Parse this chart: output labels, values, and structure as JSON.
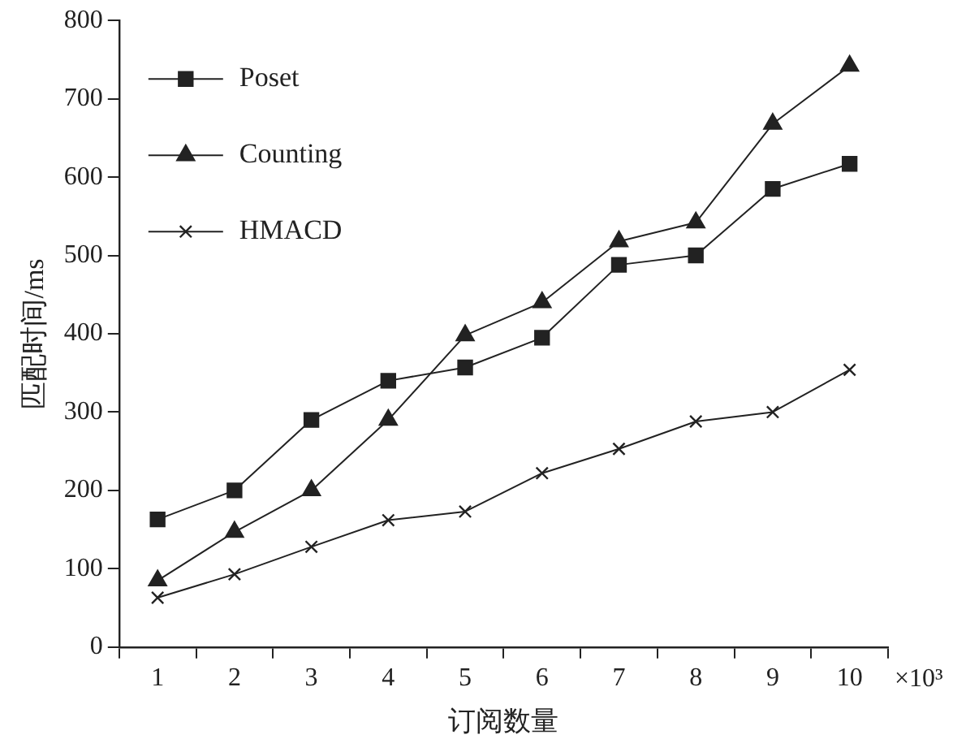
{
  "chart_data": {
    "type": "line",
    "xlabel": "订阅数量",
    "ylabel": "匹配时间/ms",
    "categories": [
      "1",
      "2",
      "3",
      "4",
      "5",
      "6",
      "7",
      "8",
      "9",
      "10"
    ],
    "ylim": [
      0,
      800
    ],
    "yticks": [
      0,
      100,
      200,
      300,
      400,
      500,
      600,
      700,
      800
    ],
    "grid": false,
    "legend": "top left",
    "line_style": "solid",
    "annotations": [
      "×10³"
    ],
    "series": [
      {
        "name": "Poset",
        "color": "#222222",
        "marker": "square",
        "values": [
          163,
          200,
          290,
          340,
          357,
          395,
          488,
          500,
          585,
          617
        ]
      },
      {
        "name": "Counting",
        "color": "#222222",
        "marker": "triangle",
        "values": [
          85,
          147,
          200,
          290,
          398,
          440,
          518,
          542,
          668,
          742
        ]
      },
      {
        "name": "HMACD",
        "color": "#222222",
        "marker": "cross",
        "values": [
          63,
          93,
          128,
          162,
          173,
          222,
          253,
          288,
          300,
          354
        ]
      }
    ]
  }
}
